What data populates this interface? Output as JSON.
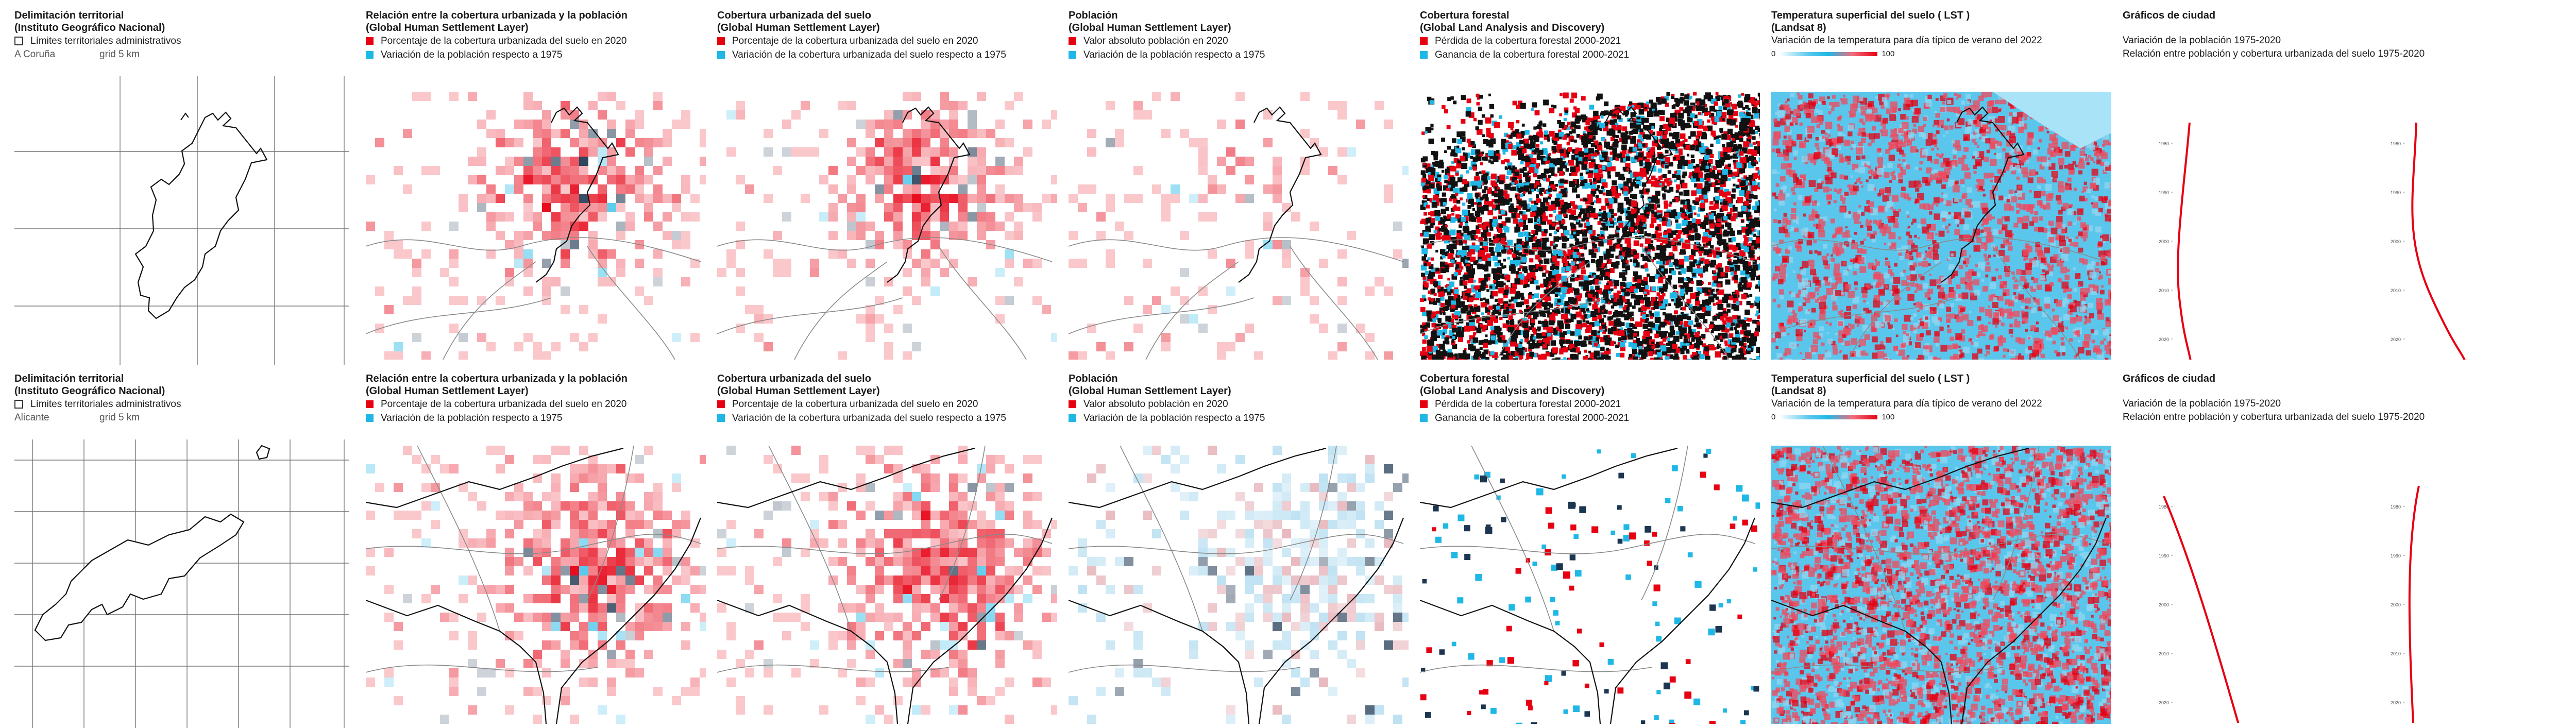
{
  "rows": [
    {
      "city": "A Coruña",
      "grid_label": "grid 5 km",
      "panels": {
        "delim": {
          "title1": "Delimitación territorial",
          "title2": "(Instituto Geográfico Nacional)",
          "legend": "Límites territoriales administrativos"
        },
        "relacion": {
          "title1": "Relación entre la cobertura urbanizada y la población",
          "title2": "(Global Human Settlement Layer)",
          "legend1": "Porcentaje de la cobertura urbanizada del suelo en 2020",
          "legend2": "Variación de la población respecto a 1975"
        },
        "cobertura": {
          "title1": "Cobertura urbanizada del suelo",
          "title2": "(Global Human Settlement Layer)",
          "legend1": "Porcentaje de la cobertura urbanizada del suelo en 2020",
          "legend2": "Variación de la cobertura urbanizada del suelo respecto a 1975"
        },
        "poblacion": {
          "title1": "Población",
          "title2": "(Global Human Settlement Layer)",
          "legend1": "Valor absoluto población en 2020",
          "legend2": "Variación de la población respecto a 1975"
        },
        "forestal": {
          "title1": "Cobertura forestal",
          "title2": "(Global Land Analysis and Discovery)",
          "legend1": "Pérdida de la cobertura forestal 2000-2021",
          "legend2": "Ganancia de la cobertura forestal 2000-2021"
        },
        "lst": {
          "title1": "Temperatura superficial del suelo  ( LST )",
          "title2": "(Landsat 8)",
          "legend1": "Variación de la temperatura para día típico de verano del 2022",
          "scale_min": "0",
          "scale_max": "100"
        },
        "graficos": {
          "title1": "Gráficos de ciudad",
          "line1": "Variación de la población 1975-2020",
          "line2": "Relación entre población y cobertura urbanizada del suelo 1975-2020",
          "years": [
            "1980",
            "1990",
            "2000",
            "2010",
            "2020"
          ]
        }
      }
    },
    {
      "city": "Alicante",
      "grid_label": "grid 5 km",
      "panels": {
        "delim": {
          "title1": "Delimitación territorial",
          "title2": "(Instituto Geográfico Nacional)",
          "legend": "Límites territoriales administrativos"
        },
        "relacion": {
          "title1": "Relación entre la cobertura urbanizada y la población",
          "title2": "(Global Human Settlement Layer)",
          "legend1": "Porcentaje de la cobertura urbanizada del suelo en 2020",
          "legend2": "Variación de la población respecto a 1975"
        },
        "cobertura": {
          "title1": "Cobertura urbanizada del suelo",
          "title2": "(Global Human Settlement Layer)",
          "legend1": "Porcentaje de la cobertura urbanizada del suelo en 2020",
          "legend2": "Variación de la cobertura urbanizada del suelo respecto a 1975"
        },
        "poblacion": {
          "title1": "Población",
          "title2": "(Global Human Settlement Layer)",
          "legend1": "Valor absoluto población en 2020",
          "legend2": "Variación de la población respecto a 1975"
        },
        "forestal": {
          "title1": "Cobertura forestal",
          "title2": "(Global Land Analysis and Discovery)",
          "legend1": "Pérdida de la cobertura forestal 2000-2021",
          "legend2": "Ganancia de la cobertura forestal 2000-2021"
        },
        "lst": {
          "title1": "Temperatura superficial del suelo  ( LST )",
          "title2": "(Landsat 8)",
          "legend1": "Variación de la temperatura para día típico de verano del 2022",
          "scale_min": "0",
          "scale_max": "100"
        },
        "graficos": {
          "title1": "Gráficos de ciudad",
          "line1": "Variación de la población 1975-2020",
          "line2": "Relación entre población y cobertura urbanizada del suelo 1975-2020",
          "years": [
            "1980",
            "1990",
            "2000",
            "2010",
            "2020"
          ]
        }
      }
    }
  ],
  "colors": {
    "red": "#e60012",
    "cyan": "#1fb8e6",
    "navy": "#1c3550",
    "lst_base": "#5bc6ec"
  }
}
